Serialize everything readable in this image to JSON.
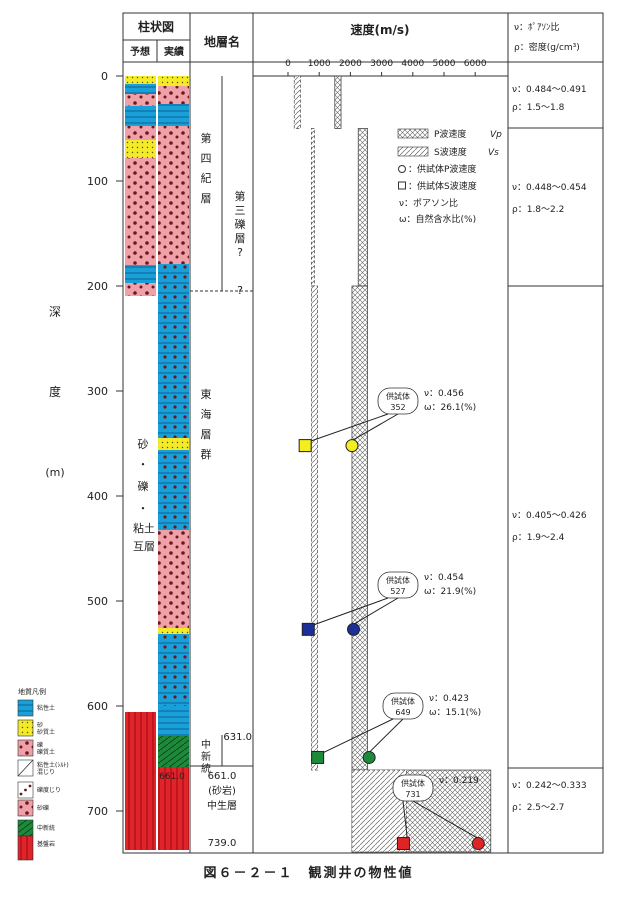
{
  "header": {
    "column_log": "柱状図",
    "col_predicted": "予想",
    "col_actual": "実績",
    "col_strata": "地層名",
    "col_velocity": "速度(m/s)",
    "poisson_label": "ν：ﾎﾟｱｿﾝ比",
    "density_label": "ρ：密度(g/cm³)"
  },
  "depth_axis": {
    "label_chars": [
      "深",
      "度",
      "(m)"
    ],
    "ticks": [
      0,
      100,
      200,
      300,
      400,
      500,
      600,
      700
    ]
  },
  "velocity_axis": {
    "ticks": [
      0,
      1000,
      2000,
      3000,
      4000,
      5000,
      6000
    ],
    "tick_labels": [
      "0",
      "1000",
      "2000",
      "3000",
      "4000",
      "5000",
      "6000"
    ]
  },
  "strata": {
    "quaternary": "第四紀層",
    "third_gravel": "第三礫層?",
    "question_mark": "?",
    "tokai": "東海層群",
    "sand_gravel_clay": [
      "砂",
      "・",
      "礫",
      "・",
      "粘土",
      "互層"
    ],
    "chushinto": "中新統",
    "chushinto_depth": "631.0",
    "sandstone_depth": "661.0",
    "sandstone_depth_col": "661.0",
    "sandstone": "(砂岩)",
    "mesozoic": "中生層",
    "bottom_depth": "739.0"
  },
  "property_boxes": [
    {
      "nu": "ν：0.484～0.491",
      "rho": "ρ：1.5～1.8"
    },
    {
      "nu": "ν：0.448～0.454",
      "rho": "ρ：1.8～2.2"
    },
    {
      "nu": "ν：0.405～0.426",
      "rho": "ρ：1.9～2.4"
    },
    {
      "nu": "ν：0.242～0.333",
      "rho": "ρ：2.5～2.7"
    }
  ],
  "legend": {
    "p_wave": "P波速度",
    "p_sym": "Vp",
    "s_wave": "S波速度",
    "s_sym": "Vs",
    "sample_p": "：供試体P波速度",
    "sample_s": "：供試体S波速度",
    "nu": "ν：ポアソン比",
    "omega": "ω：自然含水比(%)"
  },
  "chart_data": {
    "type": "line",
    "x_unit": "m/s",
    "y_unit": "m",
    "ylim": [
      0,
      739
    ],
    "xlim": [
      0,
      6500
    ],
    "p_wave_profile": [
      {
        "from": 0,
        "to": 50,
        "v_min": 1500,
        "v_max": 1700
      },
      {
        "from": 50,
        "to": 200,
        "v_min": 2250,
        "v_max": 2550
      },
      {
        "from": 200,
        "to": 661,
        "v_min": 2050,
        "v_max": 2550
      },
      {
        "from": 661,
        "to": 739,
        "v_min": 2050,
        "v_max": 6500
      }
    ],
    "s_wave_profile": [
      {
        "from": 0,
        "to": 50,
        "v_min": 200,
        "v_max": 400
      },
      {
        "from": 50,
        "to": 200,
        "v_min": 750,
        "v_max": 850
      },
      {
        "from": 200,
        "to": 661,
        "v_min": 750,
        "v_max": 950
      },
      {
        "from": 661,
        "to": 739,
        "v_min": 2050,
        "v_max": 3800
      }
    ],
    "samples": [
      {
        "id": "352",
        "depth": 352,
        "vp": 2050,
        "vs": 550,
        "color": "#f5ee1e",
        "nu": "ν：0.456",
        "omega": "ω：26.1(%)"
      },
      {
        "id": "527",
        "depth": 527,
        "vp": 2100,
        "vs": 650,
        "color": "#1b2f96",
        "nu": "ν：0.454",
        "omega": "ω：21.9(%)"
      },
      {
        "id": "649",
        "depth": 649,
        "vp": 2600,
        "vs": 950,
        "color": "#1c8a3a",
        "nu": "ν：0.423",
        "omega": "ω：15.1(%)"
      },
      {
        "id": "731",
        "depth": 731,
        "vp": 6100,
        "vs": 3700,
        "color": "#e02424",
        "nu": "ν：0.219",
        "omega": ""
      }
    ],
    "sample_label": "供試体"
  },
  "rock_legend": {
    "title": "地質凡例",
    "items": [
      {
        "label": "粘性土",
        "type": "clay"
      },
      {
        "label": "砂\n砂質土",
        "type": "sand"
      },
      {
        "label": "礫\n礫質土",
        "type": "gravel"
      },
      {
        "label": "粘性土(ｼﾙﾄ)\n混じり",
        "type": "silt"
      },
      {
        "label": "礫度じり",
        "type": "dots"
      },
      {
        "label": "砂礫",
        "type": "sandgravel"
      },
      {
        "label": "中新統",
        "type": "miocene"
      },
      {
        "label": "基盤岩",
        "type": "basement"
      }
    ]
  },
  "caption": "図６－２－１　観測井の物性値",
  "colors": {
    "clay": "#1aa0d8",
    "sand": "#f3ea2a",
    "gravel": "#f0a0a8",
    "basement": "#e0242c",
    "miocene": "#1c8a3a"
  }
}
